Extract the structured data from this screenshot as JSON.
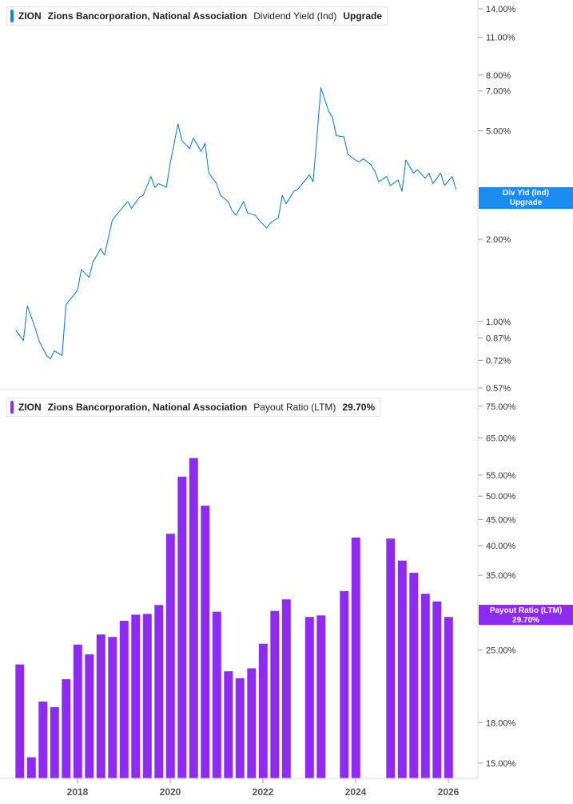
{
  "top_legend": {
    "ticker": "ZION",
    "company": "Zions Bancorporation, National Association",
    "metric": "Dividend Yield (Ind)",
    "value": "Upgrade"
  },
  "bottom_legend": {
    "ticker": "ZION",
    "company": "Zions Bancorporation, National Association",
    "metric": "Payout Ratio (LTM)",
    "value": "29.70%"
  },
  "top_tag": {
    "line1": "Div Yld (Ind)",
    "line2": "Upgrade"
  },
  "bottom_tag": {
    "line1": "Payout Ratio (LTM)",
    "line2": "29.70%"
  },
  "colors": {
    "line": "#1a7ee6",
    "bar": "#8e2bf0",
    "tag_blue": "#1a8cf0",
    "tag_purple": "#8e2bf0",
    "grid": "#e0e0e0",
    "axis_text": "#333333"
  },
  "chart_data": [
    {
      "type": "line",
      "title": "Dividend Yield (Ind)",
      "scale": "log",
      "ylim": [
        "0.57%",
        "14.00%"
      ],
      "y_ticks": [
        "14.00%",
        "11.00%",
        "8.00%",
        "7.00%",
        "5.00%",
        "2.00%",
        "1.00%",
        "0.87%",
        "0.72%",
        "0.57%"
      ],
      "series": [
        {
          "name": "Dividend Yield (Ind)",
          "x": [
            "2016-09",
            "2016-11",
            "2016-12",
            "2017-02",
            "2017-03",
            "2017-05",
            "2017-06",
            "2017-07",
            "2017-09",
            "2017-10",
            "2017-11",
            "2018-01",
            "2018-02",
            "2018-04",
            "2018-05",
            "2018-07",
            "2018-08",
            "2018-10",
            "2018-11",
            "2018-12",
            "2019-02",
            "2019-03",
            "2019-05",
            "2019-06",
            "2019-08",
            "2019-09",
            "2019-10",
            "2019-12",
            "2020-01",
            "2020-03",
            "2020-04",
            "2020-06",
            "2020-07",
            "2020-09",
            "2020-10",
            "2020-11",
            "2021-01",
            "2021-02",
            "2021-04",
            "2021-05",
            "2021-06",
            "2021-08",
            "2021-09",
            "2021-11",
            "2021-12",
            "2022-02",
            "2022-03",
            "2022-05",
            "2022-06",
            "2022-07",
            "2022-09",
            "2022-10",
            "2022-12",
            "2023-01",
            "2023-02",
            "2023-03",
            "2023-04",
            "2023-06",
            "2023-07",
            "2023-08",
            "2023-10",
            "2023-11",
            "2024-01",
            "2024-02",
            "2024-03",
            "2024-05",
            "2024-06",
            "2024-07",
            "2024-09",
            "2024-10",
            "2024-12",
            "2025-01",
            "2025-02",
            "2025-04",
            "2025-05",
            "2025-07",
            "2025-08",
            "2025-09",
            "2025-11",
            "2025-12",
            "2026-02",
            "2026-03"
          ],
          "values": [
            0.93,
            0.85,
            1.14,
            0.95,
            0.85,
            0.75,
            0.73,
            0.78,
            0.75,
            1.15,
            1.2,
            1.3,
            1.55,
            1.45,
            1.65,
            1.85,
            1.75,
            2.35,
            2.45,
            2.55,
            2.75,
            2.6,
            2.85,
            2.9,
            3.4,
            3.1,
            3.2,
            3.1,
            3.8,
            5.3,
            4.6,
            4.3,
            4.7,
            4.2,
            4.5,
            3.5,
            3.2,
            2.9,
            2.75,
            2.55,
            2.45,
            2.75,
            2.5,
            2.45,
            2.35,
            2.2,
            2.3,
            2.4,
            2.9,
            2.7,
            3.0,
            3.05,
            3.3,
            3.45,
            3.25,
            4.8,
            7.2,
            5.9,
            5.6,
            4.8,
            4.75,
            4.1,
            3.9,
            3.85,
            3.95,
            3.75,
            3.55,
            3.25,
            3.4,
            3.15,
            3.3,
            3.0,
            3.9,
            3.5,
            3.6,
            3.35,
            3.5,
            3.2,
            3.5,
            3.15,
            3.4,
            3.05
          ]
        }
      ]
    },
    {
      "type": "bar",
      "title": "Payout Ratio (LTM)",
      "scale": "log",
      "ylim": [
        "14.00%",
        "78.00%"
      ],
      "y_ticks": [
        "75.00%",
        "65.00%",
        "55.00%",
        "50.00%",
        "45.00%",
        "40.00%",
        "35.00%",
        "25.00%",
        "18.00%",
        "15.00%"
      ],
      "x_ticks": [
        "2018",
        "2020",
        "2022",
        "2024",
        "2026"
      ],
      "categories": [
        "2016 Q4",
        "2017 Q1",
        "2017 Q2",
        "2017 Q3",
        "2017 Q4",
        "2018 Q1",
        "2018 Q2",
        "2018 Q3",
        "2018 Q4",
        "2019 Q1",
        "2019 Q2",
        "2019 Q3",
        "2019 Q4",
        "2020 Q1",
        "2020 Q2",
        "2020 Q3",
        "2020 Q4",
        "2021 Q1",
        "2021 Q2",
        "2021 Q3",
        "2021 Q4",
        "2022 Q1",
        "2022 Q2",
        "2022 Q3",
        "2023 Q1",
        "2023 Q2",
        "2023 Q4",
        "2024 Q1",
        "2024 Q4",
        "2025 Q1",
        "2025 Q2",
        "2025 Q3",
        "2025 Q4",
        "2026 Q1"
      ],
      "series": [
        {
          "name": "Payout Ratio (LTM)",
          "values": [
            23.4,
            15.4,
            19.8,
            19.3,
            21.9,
            25.6,
            24.5,
            26.8,
            26.5,
            28.5,
            29.3,
            29.4,
            30.6,
            42.2,
            54.6,
            59.4,
            47.9,
            29.7,
            22.7,
            22.0,
            23.0,
            25.7,
            29.8,
            31.4,
            29.0,
            29.2,
            32.6,
            41.5,
            41.3,
            37.4,
            35.4,
            32.2,
            31.1,
            29.0
          ]
        }
      ]
    }
  ]
}
